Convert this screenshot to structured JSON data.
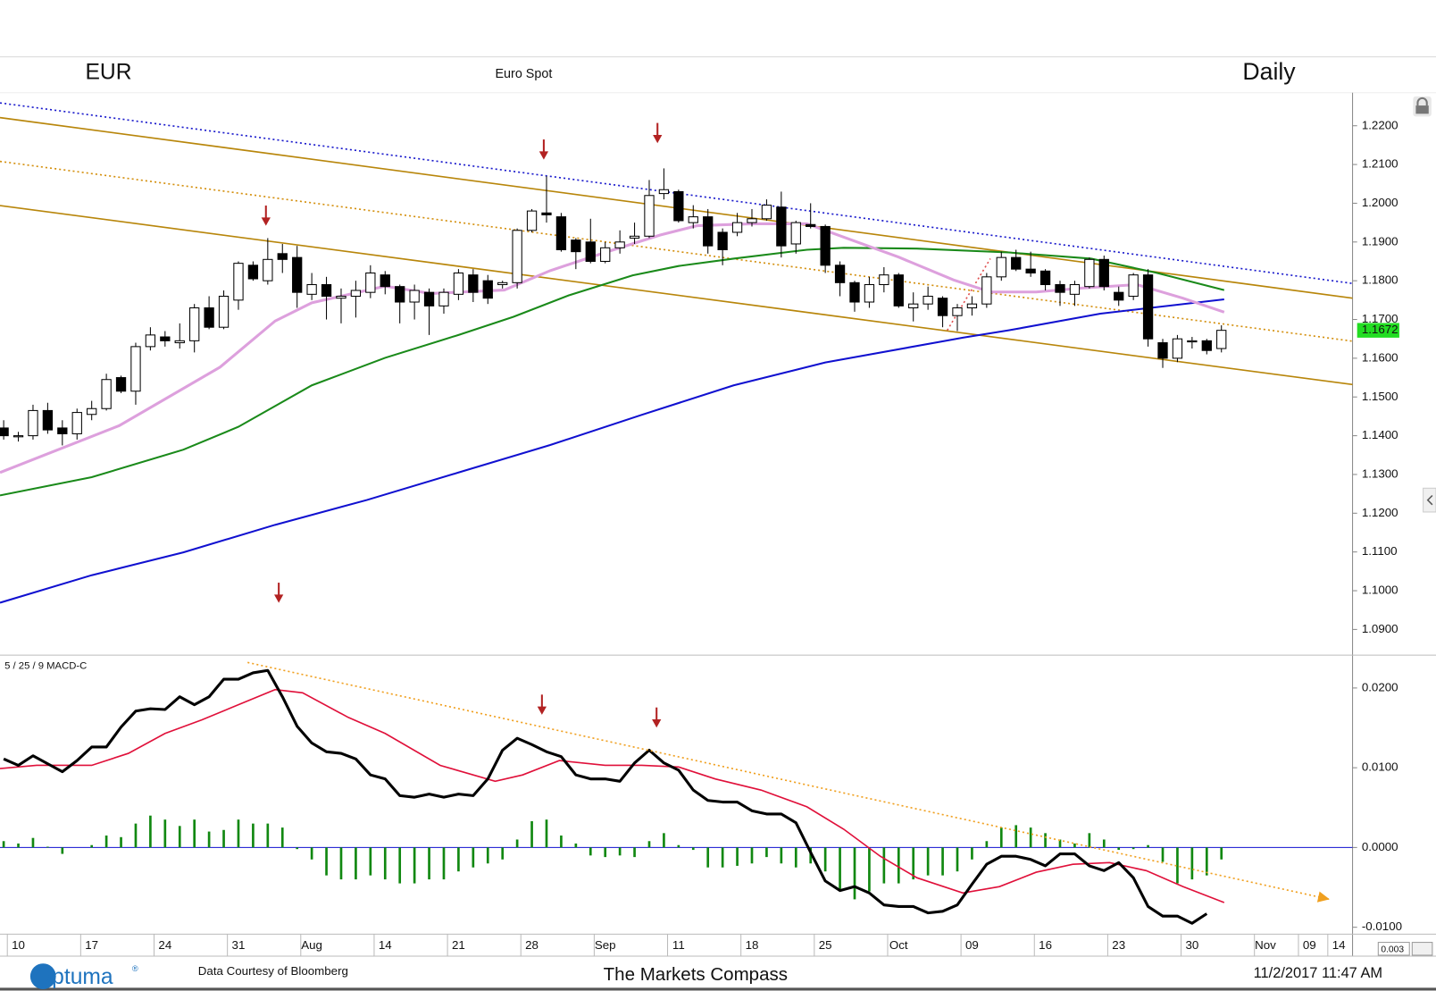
{
  "chart_data": [
    {
      "type": "candlestick",
      "title": "EUR",
      "subtitle": "Euro Spot",
      "period": "Daily",
      "x": [
        -1,
        0,
        1,
        2,
        3,
        4,
        5,
        6,
        7,
        8,
        9,
        10,
        11,
        12,
        13,
        14,
        15,
        16,
        17,
        18,
        19,
        20,
        21,
        22,
        23,
        24,
        25,
        26,
        27,
        28,
        29,
        30,
        31,
        32,
        33,
        34,
        35,
        36,
        37,
        38,
        39,
        40,
        41,
        42,
        43,
        44,
        45,
        46,
        47,
        48,
        49,
        50,
        51,
        52,
        53,
        54,
        55,
        56,
        57,
        58,
        59,
        60,
        61,
        62,
        63,
        64,
        65,
        66,
        67,
        68,
        69,
        70,
        71,
        72,
        73,
        74,
        75,
        76,
        77,
        78,
        79,
        80,
        81,
        82
      ],
      "open": [
        1.142,
        1.14,
        1.14,
        1.1465,
        1.142,
        1.1405,
        1.1455,
        1.147,
        1.155,
        1.1515,
        1.163,
        1.1655,
        1.164,
        1.1645,
        1.173,
        1.168,
        1.175,
        1.184,
        1.18,
        1.187,
        1.186,
        1.1765,
        1.179,
        1.1755,
        1.176,
        1.177,
        1.1815,
        1.1785,
        1.1745,
        1.177,
        1.1735,
        1.1765,
        1.1815,
        1.18,
        1.179,
        1.1795,
        1.193,
        1.1975,
        1.1965,
        1.1905,
        1.19,
        1.185,
        1.1885,
        1.191,
        1.1915,
        1.2025,
        1.203,
        1.195,
        1.1965,
        1.1925,
        1.1925,
        1.195,
        1.196,
        1.199,
        1.1895,
        1.1945,
        1.194,
        1.184,
        1.1795,
        1.1745,
        1.179,
        1.1815,
        1.173,
        1.174,
        1.1755,
        1.171,
        1.173,
        1.174,
        1.181,
        1.186,
        1.183,
        1.1825,
        1.179,
        1.1765,
        1.1785,
        1.1855,
        1.177,
        1.176,
        1.1815,
        1.164,
        1.16,
        1.1645,
        1.1645,
        1.1625
      ],
      "high": [
        1.144,
        1.141,
        1.148,
        1.1485,
        1.144,
        1.147,
        1.149,
        1.156,
        1.1555,
        1.164,
        1.168,
        1.167,
        1.169,
        1.174,
        1.176,
        1.1775,
        1.185,
        1.185,
        1.191,
        1.1895,
        1.189,
        1.182,
        1.181,
        1.178,
        1.18,
        1.184,
        1.1825,
        1.179,
        1.179,
        1.178,
        1.178,
        1.183,
        1.183,
        1.1815,
        1.18,
        1.1935,
        1.1985,
        1.207,
        1.1975,
        1.191,
        1.196,
        1.19,
        1.193,
        1.195,
        1.206,
        1.209,
        1.2035,
        1.1995,
        1.1985,
        1.1935,
        1.1975,
        1.1985,
        1.201,
        1.203,
        1.1955,
        1.2,
        1.1945,
        1.185,
        1.18,
        1.181,
        1.1835,
        1.182,
        1.177,
        1.1785,
        1.176,
        1.174,
        1.176,
        1.182,
        1.1875,
        1.188,
        1.1875,
        1.183,
        1.18,
        1.18,
        1.186,
        1.1865,
        1.1785,
        1.182,
        1.183,
        1.165,
        1.166,
        1.1655,
        1.165,
        1.1685
      ],
      "low": [
        1.139,
        1.1385,
        1.139,
        1.1405,
        1.1375,
        1.139,
        1.144,
        1.1465,
        1.151,
        1.148,
        1.162,
        1.163,
        1.1625,
        1.1615,
        1.1675,
        1.1675,
        1.1725,
        1.18,
        1.179,
        1.182,
        1.173,
        1.175,
        1.17,
        1.169,
        1.1705,
        1.1755,
        1.1765,
        1.169,
        1.17,
        1.166,
        1.1715,
        1.175,
        1.1745,
        1.174,
        1.178,
        1.178,
        1.1925,
        1.195,
        1.1875,
        1.183,
        1.1845,
        1.1845,
        1.187,
        1.1895,
        1.191,
        1.201,
        1.195,
        1.1935,
        1.187,
        1.184,
        1.1915,
        1.194,
        1.1955,
        1.186,
        1.187,
        1.1935,
        1.182,
        1.176,
        1.172,
        1.173,
        1.177,
        1.173,
        1.1695,
        1.1725,
        1.168,
        1.167,
        1.171,
        1.173,
        1.18,
        1.1825,
        1.181,
        1.1775,
        1.1735,
        1.1735,
        1.178,
        1.1775,
        1.1735,
        1.175,
        1.163,
        1.1575,
        1.159,
        1.1625,
        1.161,
        1.1615
      ],
      "close": [
        1.14,
        1.14,
        1.1465,
        1.1415,
        1.1405,
        1.146,
        1.147,
        1.1545,
        1.1515,
        1.163,
        1.166,
        1.1645,
        1.1645,
        1.173,
        1.168,
        1.176,
        1.1845,
        1.1805,
        1.1855,
        1.1855,
        1.177,
        1.179,
        1.176,
        1.176,
        1.1775,
        1.182,
        1.1785,
        1.1745,
        1.1775,
        1.1735,
        1.177,
        1.182,
        1.177,
        1.1755,
        1.1795,
        1.193,
        1.198,
        1.197,
        1.188,
        1.1875,
        1.185,
        1.1885,
        1.19,
        1.1915,
        1.202,
        1.2035,
        1.1955,
        1.1965,
        1.189,
        1.188,
        1.195,
        1.196,
        1.1995,
        1.189,
        1.195,
        1.194,
        1.184,
        1.1795,
        1.1745,
        1.179,
        1.1815,
        1.1735,
        1.174,
        1.176,
        1.171,
        1.173,
        1.174,
        1.181,
        1.186,
        1.183,
        1.182,
        1.179,
        1.177,
        1.179,
        1.1855,
        1.1785,
        1.175,
        1.1815,
        1.165,
        1.16,
        1.165,
        1.1645,
        1.162,
        1.1672
      ],
      "up_color": "#ffffff",
      "down_color": "#000000",
      "overlays": [
        {
          "color": "#1010d0",
          "width": 2,
          "x": [
            -1.25,
            5,
            11.25,
            17.5,
            23.75,
            30,
            36.25,
            42.5,
            48.75,
            55,
            64.375,
            67.5,
            73.75,
            82.1875
          ],
          "values": [
            1.0969,
            1.104,
            1.1099,
            1.117,
            1.1234,
            1.1305,
            1.1376,
            1.1454,
            1.153,
            1.1589,
            1.1653,
            1.1672,
            1.1715,
            1.1752
          ]
        },
        {
          "color": "#1a8a1a",
          "width": 2,
          "x": [
            -1.25,
            5,
            11.25,
            15,
            20,
            25,
            30,
            33.75,
            37.5,
            41.875,
            45,
            48.75,
            53.75,
            56.25,
            61.25,
            67.5,
            73.125,
            77.5,
            82.1875
          ],
          "values": [
            1.1246,
            1.1293,
            1.1364,
            1.1423,
            1.153,
            1.1601,
            1.166,
            1.1707,
            1.1762,
            1.1814,
            1.1838,
            1.1857,
            1.188,
            1.1885,
            1.1883,
            1.1873,
            1.1857,
            1.1821,
            1.1776
          ]
        },
        {
          "color": "#dda0dd",
          "width": 3,
          "x": [
            -1.25,
            6.875,
            13.75,
            17.5,
            20,
            25,
            28.125,
            33.125,
            36.25,
            40,
            43.75,
            46.25,
            50,
            53.75,
            56.875,
            60,
            63.75,
            66.25,
            69.375,
            72.5,
            76.25,
            79.375,
            82.1875
          ],
          "values": [
            1.1305,
            1.1426,
            1.1577,
            1.1696,
            1.1743,
            1.1786,
            1.1767,
            1.1776,
            1.1826,
            1.1873,
            1.1918,
            1.1942,
            1.1947,
            1.1947,
            1.1904,
            1.1861,
            1.1802,
            1.1771,
            1.1771,
            1.1781,
            1.179,
            1.1755,
            1.1719
          ]
        }
      ],
      "trendlines": [
        {
          "color": "#1a1acc",
          "dash": true,
          "x": [
            -1.25,
            90.9375
          ],
          "values": [
            1.2259,
            1.1793
          ]
        },
        {
          "color": "#b8860b",
          "dash": false,
          "x": [
            -1.25,
            90.9375
          ],
          "values": [
            1.2221,
            1.1755
          ]
        },
        {
          "color": "#d4900f",
          "dash": true,
          "x": [
            -1.25,
            90.9375
          ],
          "values": [
            1.2108,
            1.1644
          ]
        },
        {
          "color": "#b8860b",
          "dash": false,
          "x": [
            -1.25,
            90.9375
          ],
          "values": [
            1.1994,
            1.1532
          ]
        },
        {
          "color": "#e05050",
          "dash": true,
          "x": [
            63.3125,
            66.25
          ],
          "values": [
            1.1672,
            1.1857
          ]
        }
      ],
      "xlim": [
        -1.25,
        90.9375
      ],
      "ylim": [
        1.0836,
        1.2283
      ],
      "yticks": [
        {
          "value": 1.22,
          "label": "1.2200"
        },
        {
          "value": 1.21,
          "label": "1.2100"
        },
        {
          "value": 1.2,
          "label": "1.2000"
        },
        {
          "value": 1.19,
          "label": "1.1900"
        },
        {
          "value": 1.18,
          "label": "1.1800"
        },
        {
          "value": 1.17,
          "label": "1.1700"
        },
        {
          "value": 1.16,
          "label": "1.1600"
        },
        {
          "value": 1.15,
          "label": "1.1500"
        },
        {
          "value": 1.14,
          "label": "1.1400"
        },
        {
          "value": 1.13,
          "label": "1.1300"
        },
        {
          "value": 1.12,
          "label": "1.1200"
        },
        {
          "value": 1.11,
          "label": "1.1100"
        },
        {
          "value": 1.1,
          "label": "1.1000"
        },
        {
          "value": 1.09,
          "label": "1.0900"
        }
      ],
      "grid": false,
      "last_price": 1.1672,
      "last_price_color": "#22dd22"
    },
    {
      "type": "macd",
      "title": "5 / 25 / 9 MACD-C",
      "macd": {
        "color": "#000000",
        "width": 3,
        "values": [
          0.0111,
          0.0103,
          0.0115,
          0.0105,
          0.0095,
          0.0109,
          0.0126,
          0.0126,
          0.0151,
          0.0171,
          0.0174,
          0.0173,
          0.0189,
          0.0179,
          0.0189,
          0.0211,
          0.0211,
          0.0219,
          0.0222,
          0.0189,
          0.0152,
          0.0131,
          0.012,
          0.0118,
          0.0111,
          0.0091,
          0.0086,
          0.0065,
          0.0063,
          0.0067,
          0.0063,
          0.0067,
          0.0065,
          0.0086,
          0.0122,
          0.0137,
          0.0129,
          0.012,
          0.0114,
          0.0091,
          0.0086,
          0.0086,
          0.0083,
          0.0106,
          0.0122,
          0.0106,
          0.0097,
          0.0072,
          0.0059,
          0.0057,
          0.0057,
          0.0046,
          0.0042,
          0.0042,
          0.0031,
          -0.0006,
          -0.0042,
          -0.0054,
          -0.0049,
          -0.0057,
          -0.0072,
          -0.0074,
          -0.0074,
          -0.0082,
          -0.008,
          -0.0072,
          -0.0046,
          -0.0021,
          -0.0011,
          -0.0011,
          -0.0015,
          -0.0023,
          -0.0008,
          -0.0008,
          -0.0023,
          -0.0029,
          -0.0019,
          -0.0038,
          -0.0074,
          -0.0086,
          -0.0086,
          -0.0095,
          -0.0083
        ]
      },
      "signal": {
        "color": "#e0103a",
        "width": 1.6,
        "x": [
          -1.25,
          1.25,
          5,
          7.5,
          10,
          12.5,
          15,
          17.5,
          19.375,
          22.5,
          25,
          28.75,
          32.5,
          34.375,
          36.875,
          40,
          42.5,
          45,
          47.5,
          50.625,
          53.75,
          56.25,
          58.75,
          61.25,
          64.375,
          66.875,
          69.375,
          71.875,
          74.375,
          76.875,
          79.375,
          82.1875
        ],
        "values": [
          0.0099,
          0.0103,
          0.0103,
          0.0118,
          0.0143,
          0.016,
          0.0179,
          0.0198,
          0.0194,
          0.0163,
          0.0143,
          0.0103,
          0.0083,
          0.0091,
          0.0109,
          0.0103,
          0.0103,
          0.0101,
          0.0086,
          0.0072,
          0.0051,
          0.0023,
          -0.0011,
          -0.0038,
          -0.0057,
          -0.0049,
          -0.0031,
          -0.0021,
          -0.0019,
          -0.0029,
          -0.0049,
          -0.0069
        ]
      },
      "histogram": {
        "color": "#118811",
        "values": [
          0.0008,
          0.0005,
          0.0012,
          0.0001,
          -0.0008,
          0,
          0.0003,
          0.0015,
          0.0013,
          0.003,
          0.004,
          0.0035,
          0.0027,
          0.0035,
          0.002,
          0.0022,
          0.0035,
          0.003,
          0.003,
          0.0025,
          -0.0002,
          -0.0015,
          -0.0035,
          -0.004,
          -0.004,
          -0.0035,
          -0.004,
          -0.0045,
          -0.0045,
          -0.004,
          -0.004,
          -0.003,
          -0.0025,
          -0.002,
          -0.0015,
          0.001,
          0.0033,
          0.0035,
          0.0015,
          0.0005,
          -0.001,
          -0.0012,
          -0.001,
          -0.0012,
          0.0008,
          0.0018,
          0.0003,
          -0.0003,
          -0.0025,
          -0.0025,
          -0.0023,
          -0.002,
          -0.0012,
          -0.002,
          -0.0025,
          -0.002,
          -0.003,
          -0.0055,
          -0.0065,
          -0.0055,
          -0.0045,
          -0.0045,
          -0.004,
          -0.0035,
          -0.0035,
          -0.003,
          -0.0015,
          0.0008,
          0.0025,
          0.0028,
          0.0025,
          0.0018,
          0.001,
          0.0005,
          0.0018,
          0.001,
          -0.0003,
          -0.0002,
          0.0003,
          -0.0018,
          -0.0045,
          -0.004,
          -0.0035,
          -0.0015
        ]
      },
      "zero_line_color": "#1010d0",
      "trendline": {
        "color": "#f0a020",
        "dash": true,
        "arrow": true,
        "x": [
          15.625,
          89.375
        ],
        "values": [
          0.0232,
          -0.0065
        ]
      },
      "ylim": [
        -0.01086,
        0.024
      ],
      "yticks": [
        {
          "value": 0.02,
          "label": "0.0200"
        },
        {
          "value": 0.01,
          "label": "0.0100"
        },
        {
          "value": 0,
          "label": "0.0000"
        },
        {
          "value": -0.01,
          "label": "-0.0100"
        }
      ],
      "xticks": [
        {
          "value": 0,
          "label": "10"
        },
        {
          "value": 5,
          "label": "17"
        },
        {
          "value": 10,
          "label": "24"
        },
        {
          "value": 15,
          "label": "31"
        },
        {
          "value": 20,
          "label": "Aug"
        },
        {
          "value": 25,
          "label": "14"
        },
        {
          "value": 30,
          "label": "21"
        },
        {
          "value": 35,
          "label": "28"
        },
        {
          "value": 40,
          "label": "Sep"
        },
        {
          "value": 45,
          "label": "11"
        },
        {
          "value": 50,
          "label": "18"
        },
        {
          "value": 55,
          "label": "25"
        },
        {
          "value": 60,
          "label": "Oct"
        },
        {
          "value": 65,
          "label": "09"
        },
        {
          "value": 70,
          "label": "16"
        },
        {
          "value": 75,
          "label": "23"
        },
        {
          "value": 80,
          "label": "30"
        },
        {
          "value": 85,
          "label": "Nov"
        },
        {
          "value": 88,
          "label": "09"
        },
        {
          "value": 90,
          "label": "14"
        }
      ]
    }
  ],
  "footer": {
    "logo": "Optuma",
    "logo_mark": "®",
    "source": "Data Courtesy of Bloomberg",
    "brand": "The Markets Compass",
    "timestamp": "11/2/2017 11:47 AM"
  },
  "scale_box": "0.003"
}
